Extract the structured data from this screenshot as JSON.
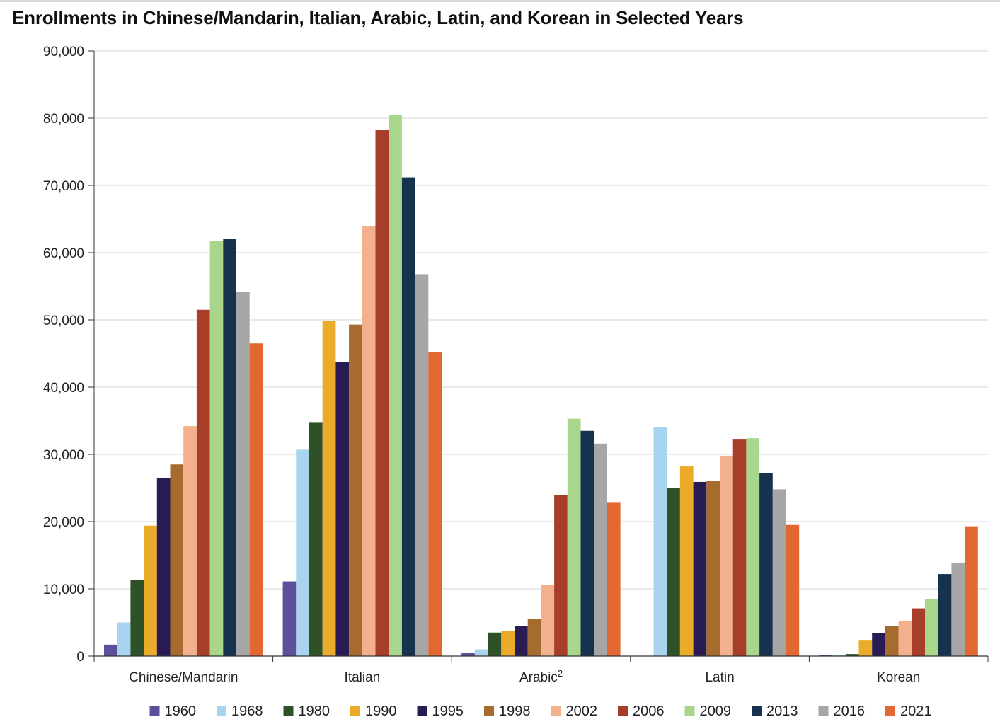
{
  "chart_data": {
    "type": "bar",
    "title": "Enrollments in Chinese/Mandarin, Italian, Arabic, Latin, and Korean in Selected Years",
    "xlabel": "",
    "ylabel": "",
    "ylim": [
      0,
      90000
    ],
    "yticks": [
      "0",
      "10,000",
      "20,000",
      "30,000",
      "40,000",
      "50,000",
      "60,000",
      "70,000",
      "80,000",
      "90,000"
    ],
    "grid": true,
    "legend_position": "bottom",
    "categories": [
      {
        "label": "Chinese/Mandarin",
        "sup": ""
      },
      {
        "label": "Italian",
        "sup": ""
      },
      {
        "label": "Arabic",
        "sup": "2"
      },
      {
        "label": "Latin",
        "sup": ""
      },
      {
        "label": "Korean",
        "sup": ""
      }
    ],
    "series": [
      {
        "name": "1960",
        "color": "#5e4f9a",
        "values": [
          1700,
          11100,
          500,
          null,
          200
        ]
      },
      {
        "name": "1968",
        "color": "#a9d4ef",
        "values": [
          5000,
          30700,
          1000,
          34000,
          200
        ]
      },
      {
        "name": "1980",
        "color": "#2e5128",
        "values": [
          11300,
          34800,
          3500,
          25000,
          300
        ]
      },
      {
        "name": "1990",
        "color": "#eaaa2a",
        "values": [
          19400,
          49800,
          3700,
          28200,
          2300
        ]
      },
      {
        "name": "1995",
        "color": "#291b54",
        "values": [
          26500,
          43700,
          4500,
          25900,
          3400
        ]
      },
      {
        "name": "1998",
        "color": "#a66b2e",
        "values": [
          28500,
          49300,
          5500,
          26100,
          4500
        ]
      },
      {
        "name": "2002",
        "color": "#f2b08d",
        "values": [
          34200,
          63900,
          10600,
          29800,
          5200
        ]
      },
      {
        "name": "2006",
        "color": "#a63e2a",
        "values": [
          51500,
          78300,
          24000,
          32200,
          7100
        ]
      },
      {
        "name": "2009",
        "color": "#a8d68a",
        "values": [
          61700,
          80500,
          35300,
          32400,
          8500
        ]
      },
      {
        "name": "2013",
        "color": "#16324f",
        "values": [
          62100,
          71200,
          33500,
          27200,
          12200
        ]
      },
      {
        "name": "2016",
        "color": "#a6a6a6",
        "values": [
          54200,
          56800,
          31600,
          24800,
          13900
        ]
      },
      {
        "name": "2021",
        "color": "#e36731",
        "values": [
          46500,
          45200,
          22800,
          19500,
          19300
        ]
      }
    ]
  }
}
